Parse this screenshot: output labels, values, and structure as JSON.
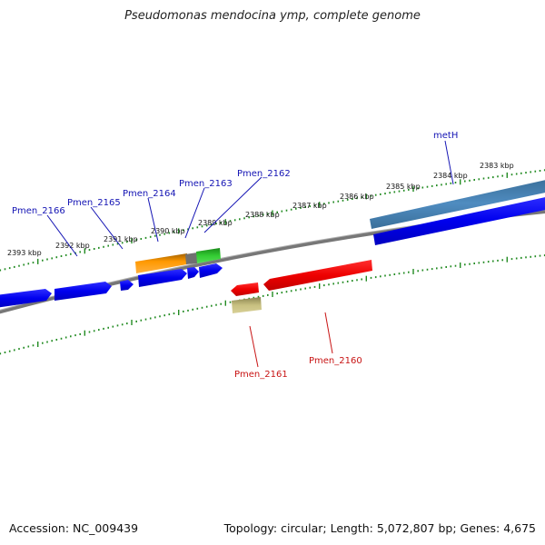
{
  "title": "Pseudomonas mendocina ymp, complete genome",
  "footer": {
    "accession": "Accession: NC_009439",
    "summary": "Topology: circular; Length: 5,072,807 bp; Genes: 4,675"
  },
  "kbp_ticks": [
    "2393 kbp",
    "2392 kbp",
    "2391 kbp",
    "2390 kbp",
    "2389 kbp",
    "2388 kbp",
    "2387 kbp",
    "2386 kbp",
    "2385 kbp",
    "2384 kbp",
    "2383 kbp"
  ],
  "gene_labels": {
    "pmen_2166": "Pmen_2166",
    "pmen_2165": "Pmen_2165",
    "pmen_2164": "Pmen_2164",
    "pmen_2163": "Pmen_2163",
    "pmen_2162": "Pmen_2162",
    "meth": "metH",
    "pmen_2161": "Pmen_2161",
    "pmen_2160": "Pmen_2160"
  },
  "colors": {
    "forward_gene": "#0000ee",
    "reverse_gene": "#ee0000",
    "backbone": "#808080",
    "ticks": "#228b22",
    "gene_label_forward": "#1414b4",
    "gene_label_reverse": "#c81414",
    "feature_orange": "#ff9900",
    "feature_green": "#33cc33",
    "feature_steelblue": "#4682b4",
    "feature_khaki": "#c8c080"
  }
}
